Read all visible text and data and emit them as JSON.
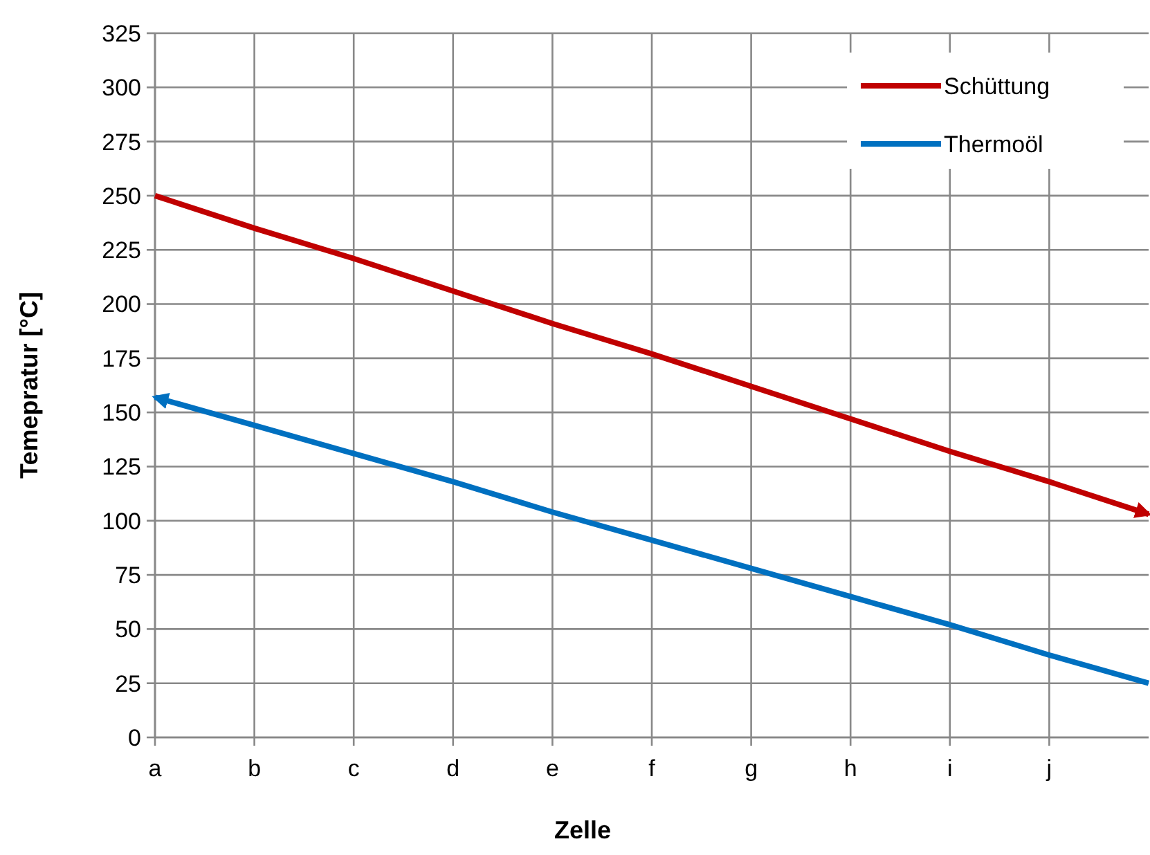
{
  "chart_data": {
    "type": "line",
    "xlabel": "Zelle",
    "ylabel": "Temepratur [°C]",
    "categories": [
      "a",
      "b",
      "c",
      "d",
      "e",
      "f",
      "g",
      "h",
      "i",
      "j",
      null
    ],
    "ylim": [
      0,
      325
    ],
    "yticks": [
      0,
      25,
      50,
      75,
      100,
      125,
      150,
      175,
      200,
      225,
      250,
      275,
      300,
      325
    ],
    "grid": true,
    "legend": "top right",
    "series": [
      {
        "name": "Schüttung",
        "color": "#c00000",
        "values": [
          250,
          235,
          221,
          206,
          191,
          177,
          162,
          147,
          132,
          118,
          103
        ]
      },
      {
        "name": "Thermoöl",
        "color": "#0070c0",
        "values": [
          157,
          144,
          131,
          118,
          104,
          91,
          78,
          65,
          52,
          38,
          25
        ]
      }
    ]
  }
}
